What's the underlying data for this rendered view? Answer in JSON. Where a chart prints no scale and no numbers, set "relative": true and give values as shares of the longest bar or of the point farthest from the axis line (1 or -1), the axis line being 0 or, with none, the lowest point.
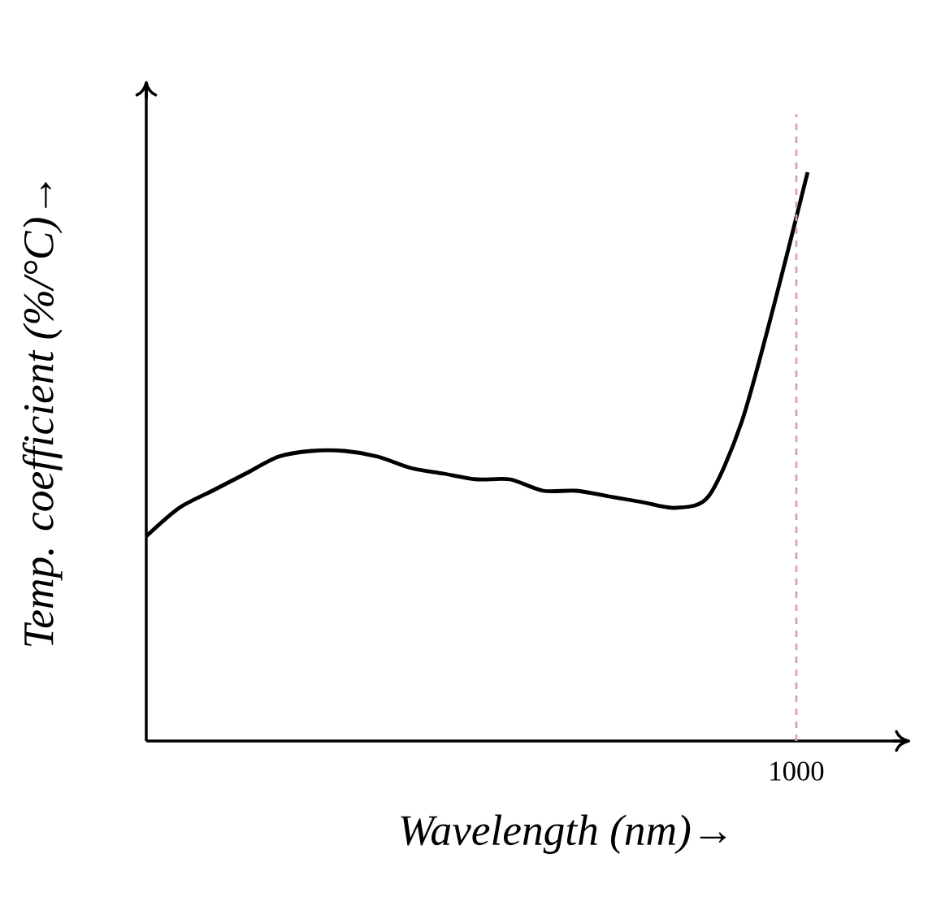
{
  "chart_data": {
    "type": "line",
    "xlabel": "Wavelength (nm)→",
    "ylabel": "Temp. coefficient (%/°C)→",
    "relative": true,
    "categories": [
      null,
      null,
      null,
      null,
      null,
      null,
      null,
      null,
      null,
      null,
      null,
      null,
      null,
      null,
      null,
      null,
      null,
      null,
      null,
      null,
      null
    ],
    "values": [
      0.36,
      0.41,
      0.44,
      0.47,
      0.5,
      0.51,
      0.51,
      0.5,
      0.48,
      0.47,
      0.46,
      0.46,
      0.44,
      0.44,
      0.43,
      0.42,
      0.41,
      0.43,
      0.56,
      0.77,
      1
    ],
    "color": "#000000",
    "annotations": [
      "1000"
    ],
    "marker": "none",
    "line_style": "solid"
  }
}
